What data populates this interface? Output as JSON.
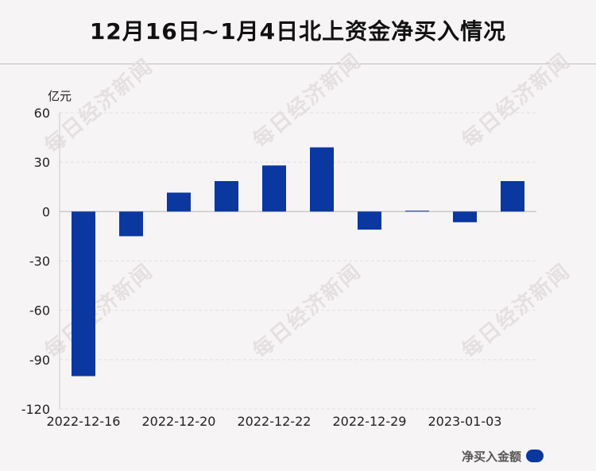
{
  "title": "12月16日~1月4日北上资金净买入情况",
  "watermark": "每日经济新闻",
  "legend": {
    "label": "净买入金额",
    "color": "#0b37a0"
  },
  "chart_data": {
    "type": "bar",
    "unit_label": "亿元",
    "series": [
      {
        "name": "净买入金额",
        "values": [
          -100,
          -15,
          11.5,
          18.5,
          28,
          39,
          -11,
          0.5,
          -6.5,
          18.5
        ],
        "color": "#0b37a0"
      }
    ],
    "categories": [
      "2022-12-16",
      "",
      "2022-12-20",
      "",
      "2022-12-22",
      "",
      "2022-12-29",
      "",
      "2023-01-03",
      ""
    ],
    "ylim": [
      -120,
      60
    ],
    "yticks": [
      60,
      30,
      0,
      -30,
      -60,
      -90,
      -120
    ],
    "grid": true,
    "legend_position": "bottom-right"
  }
}
